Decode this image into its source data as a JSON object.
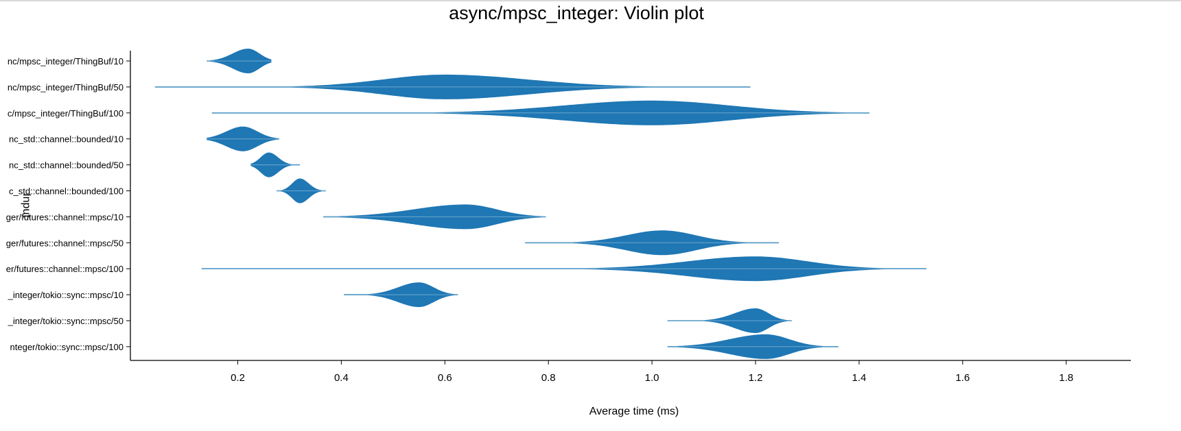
{
  "chart_data": {
    "type": "violin",
    "title": "async/mpsc_integer: Violin plot",
    "xlabel": "Average time (ms)",
    "ylabel": "Input",
    "xlim": [
      0.0,
      1.95
    ],
    "xticks": [
      0.2,
      0.4,
      0.6,
      0.8,
      1.0,
      1.2,
      1.4,
      1.6,
      1.8
    ],
    "xtick_labels": [
      "0.2",
      "0.4",
      "0.6",
      "0.8",
      "1.0",
      "1.2",
      "1.4",
      "1.6",
      "1.8"
    ],
    "color": "#1f77b4",
    "grid": false,
    "series": [
      {
        "label": "nc/mpsc_integer/ThingBuf/10",
        "min": 0.14,
        "max": 0.265,
        "peak": 0.22,
        "sd_lo": 0.03,
        "sd_hi": 0.022,
        "amp": 1.0
      },
      {
        "label": "nc/mpsc_integer/ThingBuf/50",
        "min": 0.04,
        "max": 1.19,
        "peak": 0.6,
        "sd_lo": 0.12,
        "sd_hi": 0.16,
        "amp": 1.0
      },
      {
        "label": "c/mpsc_integer/ThingBuf/100",
        "min": 0.15,
        "max": 1.42,
        "peak": 1.0,
        "sd_lo": 0.17,
        "sd_hi": 0.15,
        "amp": 1.0
      },
      {
        "label": "nc_std::channel::bounded/10",
        "min": 0.14,
        "max": 0.28,
        "peak": 0.21,
        "sd_lo": 0.032,
        "sd_hi": 0.028,
        "amp": 1.0
      },
      {
        "label": "nc_std::channel::bounded/50",
        "min": 0.225,
        "max": 0.32,
        "peak": 0.26,
        "sd_lo": 0.016,
        "sd_hi": 0.018,
        "amp": 1.0
      },
      {
        "label": "c_std::channel::bounded/100",
        "min": 0.275,
        "max": 0.37,
        "peak": 0.32,
        "sd_lo": 0.015,
        "sd_hi": 0.017,
        "amp": 1.0
      },
      {
        "label": "ger/futures::channel::mpsc/10",
        "min": 0.365,
        "max": 0.795,
        "peak": 0.64,
        "sd_lo": 0.1,
        "sd_hi": 0.06,
        "amp": 1.0
      },
      {
        "label": "ger/futures::channel::mpsc/50",
        "min": 0.755,
        "max": 1.245,
        "peak": 1.02,
        "sd_lo": 0.07,
        "sd_hi": 0.065,
        "amp": 1.0
      },
      {
        "label": "er/futures::channel::mpsc/100",
        "min": 0.13,
        "max": 1.53,
        "peak": 1.2,
        "sd_lo": 0.13,
        "sd_hi": 0.1,
        "amp": 1.0
      },
      {
        "label": "_integer/tokio::sync::mpsc/10",
        "min": 0.405,
        "max": 0.625,
        "peak": 0.55,
        "sd_lo": 0.04,
        "sd_hi": 0.028,
        "amp": 1.0
      },
      {
        "label": "_integer/tokio::sync::mpsc/50",
        "min": 1.03,
        "max": 1.27,
        "peak": 1.2,
        "sd_lo": 0.04,
        "sd_hi": 0.025,
        "amp": 1.0
      },
      {
        "label": "nteger/tokio::sync::mpsc/100",
        "min": 1.03,
        "max": 1.36,
        "peak": 1.22,
        "sd_lo": 0.07,
        "sd_hi": 0.045,
        "amp": 1.0
      }
    ]
  }
}
